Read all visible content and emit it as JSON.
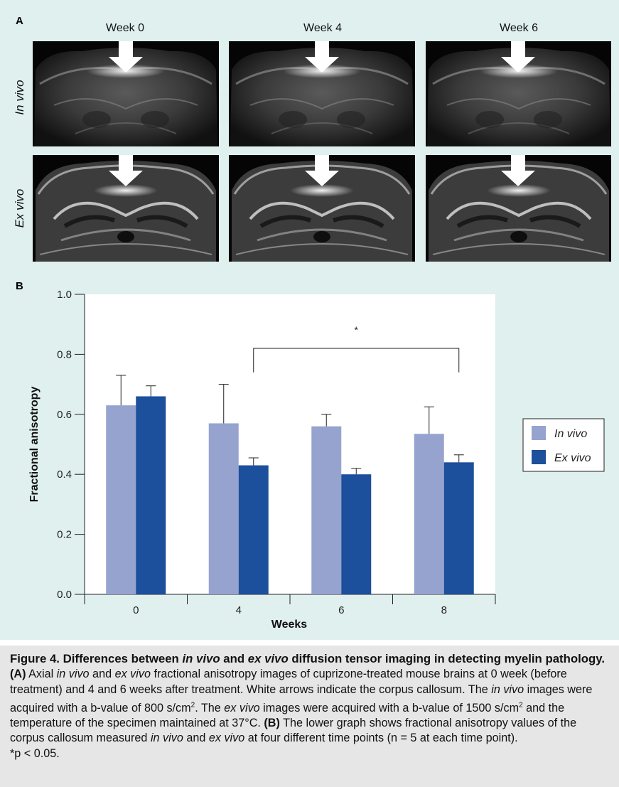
{
  "panel_a": {
    "letter": "A",
    "weeks": [
      "Week 0",
      "Week 4",
      "Week 6"
    ],
    "rows": [
      "In vivo",
      "Ex vivo"
    ]
  },
  "panel_b": {
    "letter": "B"
  },
  "chart_data": {
    "type": "bar",
    "categories": [
      "0",
      "4",
      "6",
      "8"
    ],
    "xlabel": "Weeks",
    "ylabel": "Fractional anisotropy",
    "ylim": [
      0,
      1.0
    ],
    "yticks": [
      "0.0",
      "0.2",
      "0.4",
      "0.6",
      "0.8",
      "1.0"
    ],
    "series": [
      {
        "name": "In vivo",
        "color": "#96a3cf",
        "values": [
          0.63,
          0.57,
          0.56,
          0.535
        ],
        "errors": [
          0.1,
          0.13,
          0.04,
          0.09
        ]
      },
      {
        "name": "Ex vivo",
        "color": "#1c4f9c",
        "values": [
          0.66,
          0.43,
          0.4,
          0.44
        ],
        "errors": [
          0.035,
          0.025,
          0.02,
          0.025
        ]
      }
    ],
    "significance": {
      "from": "4",
      "to": "8",
      "label": "*"
    },
    "legend": "right"
  },
  "caption": {
    "title_parts": [
      "Figure 4. Differences between ",
      "in vivo",
      " and ",
      "ex vivo",
      " diffusion tensor imaging in detecting myelin pathology."
    ],
    "a_label": "(A)",
    "a_parts": [
      " Axial ",
      "in vivo",
      " and ",
      "ex vivo",
      " fractional anisotropy images of cuprizone-treated mouse brains at 0 week (before treatment) and 4 and 6 weeks after treatment. White arrows indicate the corpus callosum. The ",
      "in vivo",
      " images were acquired with a b-value of 800 s/cm",
      "2",
      ". The ",
      "ex vivo",
      " images were acquired with a b-value of 1500 s/cm",
      "2",
      " and the temperature of the specimen maintained at 37°C."
    ],
    "b_label": "(B)",
    "b_parts": [
      " The lower graph shows fractional anisotropy values of the corpus callosum measured ",
      "in vivo",
      " and ",
      "ex vivo",
      " at four different time points (n = 5 at each time point)."
    ],
    "footnote": "*p < 0.05."
  }
}
